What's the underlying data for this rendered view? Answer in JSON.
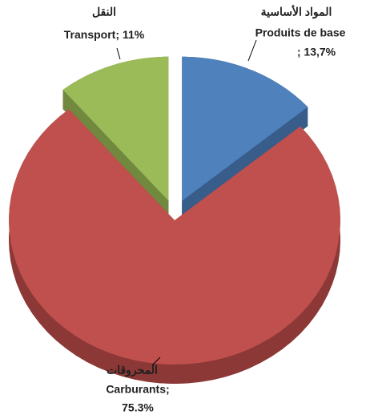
{
  "chart_data": {
    "type": "pie",
    "categories": [
      "Produits de base",
      "Carburants;",
      "Transport;"
    ],
    "categories_ar": [
      "المواد الأساسية",
      "المحروقات",
      "النقل"
    ],
    "values": [
      13.7,
      75.3,
      11
    ],
    "value_labels": [
      "; 13,7%",
      "75.3%",
      "11%"
    ],
    "colors": [
      "#4f81bd",
      "#c0504d",
      "#9bbb59"
    ],
    "side_colors": [
      "#385d8a",
      "#8c3836",
      "#71893f"
    ],
    "exploded": [
      true,
      false,
      true
    ]
  }
}
